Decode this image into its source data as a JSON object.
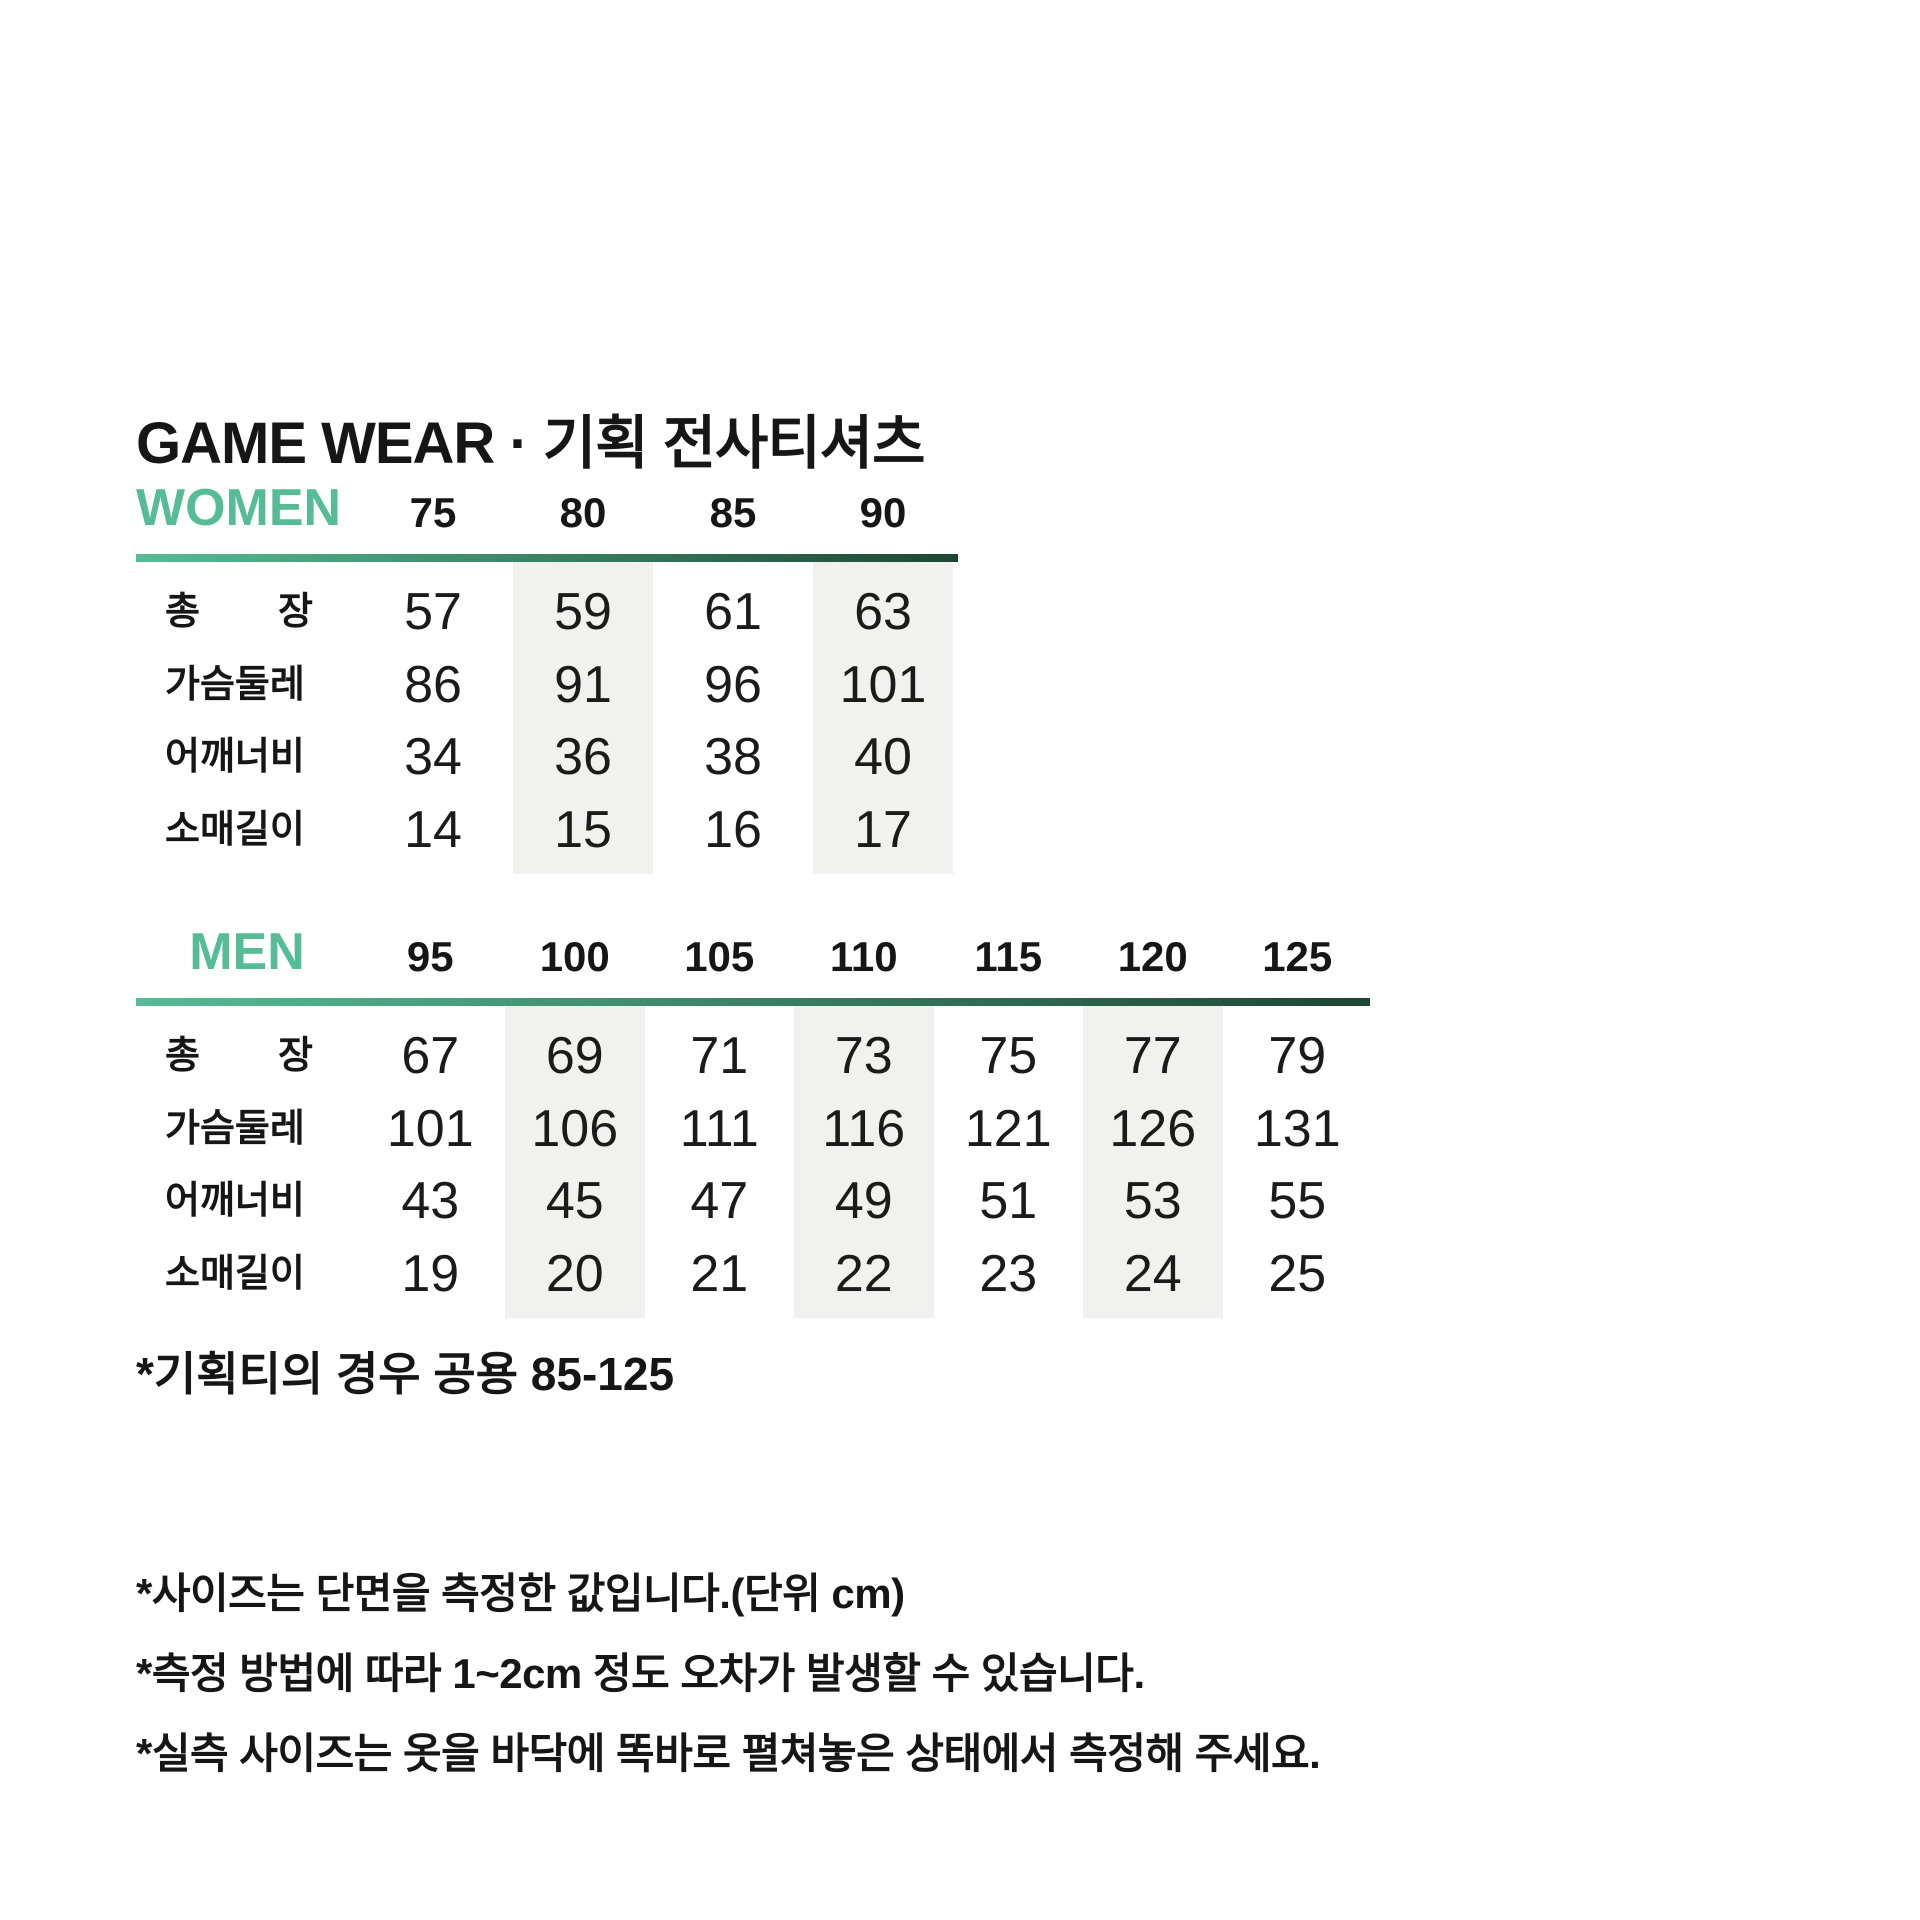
{
  "title": "GAME WEAR · 기획 전사티셔츠",
  "colors": {
    "accent_teal": "#56BC96",
    "accent_dark_green": "#1E4634",
    "stripe_gray": "#F1F1EF",
    "text": "#161616"
  },
  "tables": [
    {
      "id": "women",
      "group_label": "WOMEN",
      "sizes": [
        "75",
        "80",
        "85",
        "90"
      ],
      "striped_columns": [
        1,
        3
      ],
      "rows": [
        {
          "label": "총 장",
          "values": [
            "57",
            "59",
            "61",
            "63"
          ]
        },
        {
          "label": "가슴둘레",
          "values": [
            "86",
            "91",
            "96",
            "101"
          ]
        },
        {
          "label": "어깨너비",
          "values": [
            "34",
            "36",
            "38",
            "40"
          ]
        },
        {
          "label": "소매길이",
          "values": [
            "14",
            "15",
            "16",
            "17"
          ]
        }
      ]
    },
    {
      "id": "men",
      "group_label": "MEN",
      "sizes": [
        "95",
        "100",
        "105",
        "110",
        "115",
        "120",
        "125"
      ],
      "striped_columns": [
        1,
        3,
        5
      ],
      "rows": [
        {
          "label": "총 장",
          "values": [
            "67",
            "69",
            "71",
            "73",
            "75",
            "77",
            "79"
          ]
        },
        {
          "label": "가슴둘레",
          "values": [
            "101",
            "106",
            "111",
            "116",
            "121",
            "126",
            "131"
          ]
        },
        {
          "label": "어깨너비",
          "values": [
            "43",
            "45",
            "47",
            "49",
            "51",
            "53",
            "55"
          ]
        },
        {
          "label": "소매길이",
          "values": [
            "19",
            "20",
            "21",
            "22",
            "23",
            "24",
            "25"
          ]
        }
      ]
    }
  ],
  "notes": {
    "common_size_note": "*기획티의 경우 공용 85-125",
    "footnotes": [
      "*사이즈는 단면을 측정한 값입니다.(단위 cm)",
      "*측정 방법에 따라 1~2cm 정도 오차가 발생할 수 있습니다.",
      "*실측 사이즈는 옷을 바닥에 똑바로 펼쳐놓은 상태에서 측정해 주세요."
    ]
  }
}
